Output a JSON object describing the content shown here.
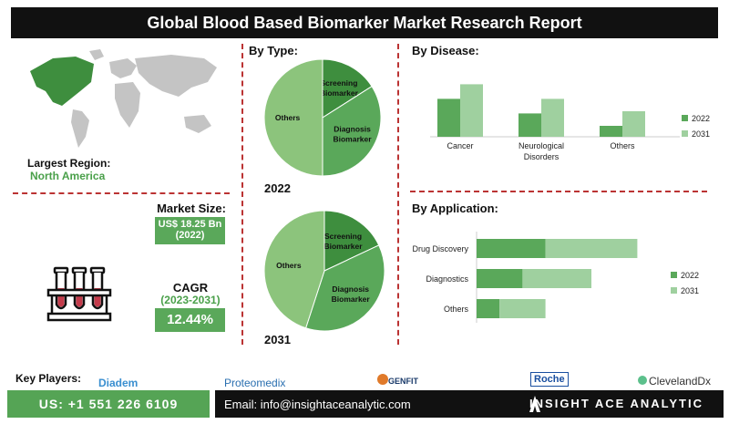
{
  "header": {
    "title": "Global Blood Based Biomarker Market Research Report"
  },
  "region": {
    "label": "Largest Region:",
    "value": "North America"
  },
  "market_size": {
    "label": "Market Size:",
    "value": "US$ 18.25 Bn",
    "year": "(2022)"
  },
  "cagr": {
    "label": "CAGR",
    "period": "(2023-2031)",
    "value": "12.44%"
  },
  "sections": {
    "by_type": "By Type:",
    "by_disease": "By Disease:",
    "by_application": "By Application:"
  },
  "colors": {
    "dark_green": "#3e8e3e",
    "mid_green": "#5aa85a",
    "light_green": "#8cc47c",
    "pale_green": "#9fd09f",
    "divider": "#b33333"
  },
  "chart_data": [
    {
      "type": "pie",
      "year": "2022",
      "slices": [
        {
          "label": "Screening Biomarker",
          "value": 16
        },
        {
          "label": "Diagnosis Biomarker",
          "value": 34
        },
        {
          "label": "Others",
          "value": 50
        }
      ]
    },
    {
      "type": "pie",
      "year": "2031",
      "slices": [
        {
          "label": "Screening Biomarker",
          "value": 18
        },
        {
          "label": "Diagnosis Biomarker",
          "value": 37
        },
        {
          "label": "Others",
          "value": 45
        }
      ]
    },
    {
      "type": "bar",
      "categories": [
        "Cancer",
        "Neurological Disorders",
        "Others"
      ],
      "series": [
        {
          "name": "2022",
          "values": [
            52,
            32,
            15
          ]
        },
        {
          "name": "2031",
          "values": [
            72,
            52,
            35
          ]
        }
      ],
      "ylim": [
        0,
        80
      ]
    },
    {
      "type": "bar",
      "orientation": "horizontal",
      "stacked": true,
      "categories": [
        "Drug Discovery",
        "Diagnostics",
        "Others"
      ],
      "series": [
        {
          "name": "2022",
          "values": [
            30,
            20,
            10
          ]
        },
        {
          "name": "2031",
          "values": [
            40,
            30,
            20
          ]
        }
      ],
      "xlim": [
        0,
        75
      ]
    }
  ],
  "key_players": {
    "label": "Key Players:",
    "names": [
      "Diadem",
      "Proteomedix",
      "GENFIT",
      "Roche",
      "ClevelandDx"
    ]
  },
  "footer": {
    "phone": "US: +1 551 226 6109",
    "email": "Email: info@insightaceanalytic.com",
    "brand": "INSIGHT ACE ANALYTIC"
  }
}
